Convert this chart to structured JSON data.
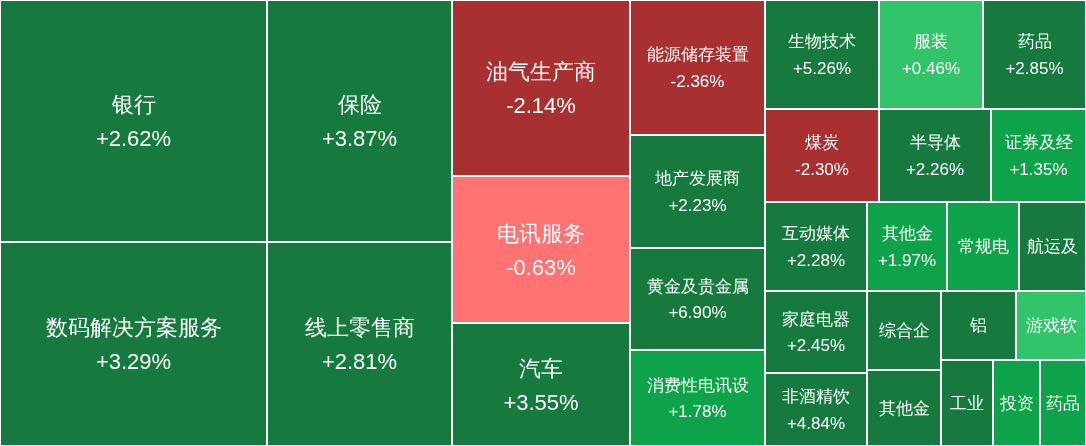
{
  "chart_data": {
    "type": "other",
    "categories": [
      "银行",
      "数码解决方案服务",
      "保险",
      "线上零售商",
      "油气生产商",
      "电讯服务",
      "汽车",
      "能源储存装置",
      "地产发展商",
      "黄金及贵金属",
      "消费性电讯设",
      "生物技术",
      "服装",
      "药品",
      "煤炭",
      "半导体",
      "证券及经",
      "互动媒体",
      "家庭电器",
      "非酒精饮",
      "其他金",
      "常规电",
      "航运及",
      "综合企",
      "其他金",
      "铝",
      "游戏软",
      "工业",
      "投资",
      "药品"
    ],
    "values": [
      2.62,
      3.29,
      3.87,
      2.81,
      -2.14,
      -0.63,
      3.55,
      -2.36,
      2.23,
      6.9,
      1.78,
      5.26,
      0.46,
      2.85,
      -2.3,
      2.26,
      1.35,
      2.28,
      2.45,
      4.84,
      1.97,
      null,
      null,
      null,
      null,
      null,
      null,
      null,
      null,
      null
    ],
    "value_labels": [
      "+2.62%",
      "+3.29%",
      "+3.87%",
      "+2.81%",
      "-2.14%",
      "-0.63%",
      "+3.55%",
      "-2.36%",
      "+2.23%",
      "+6.90%",
      "+1.78%",
      "+5.26%",
      "+0.46%",
      "+2.85%",
      "-2.30%",
      "+2.26%",
      "+1.35%",
      "+2.28%",
      "+2.45%",
      "+4.84%",
      "+1.97%",
      null,
      null,
      null,
      null,
      null,
      null,
      null,
      null,
      null
    ],
    "colors": [
      "#167a3e",
      "#167a3e",
      "#167a3e",
      "#167a3e",
      "#a93030",
      "#ff7373",
      "#167a3e",
      "#a93030",
      "#167a3e",
      "#167a3e",
      "#0ea34a",
      "#167a3e",
      "#32c46a",
      "#167a3e",
      "#a93030",
      "#167a3e",
      "#0ea34a",
      "#167a3e",
      "#167a3e",
      "#167a3e",
      "#0ea34a",
      "#0ea34a",
      "#167a3e",
      "#167a3e",
      "#167a3e",
      "#167a3e",
      "#32c46a",
      "#167a3e",
      "#0ea34a",
      "#0ea34a"
    ]
  }
}
